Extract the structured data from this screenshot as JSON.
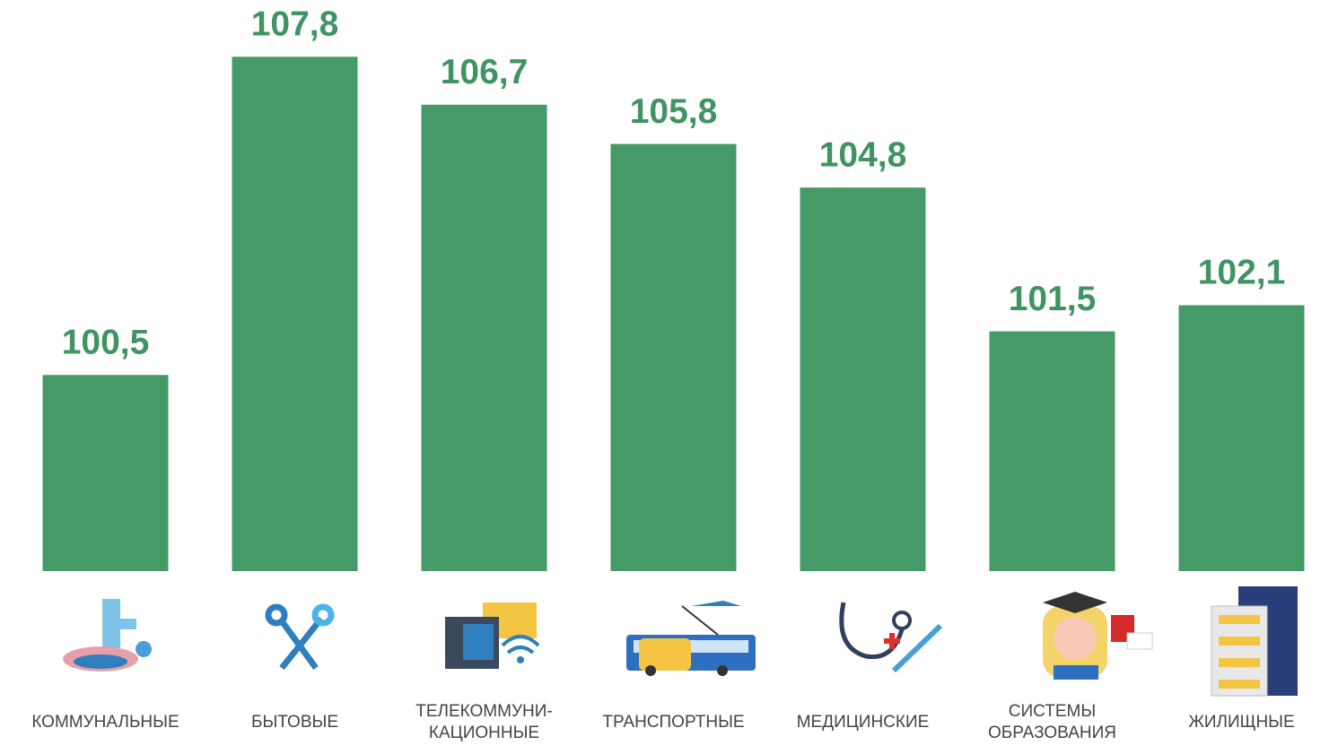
{
  "chart_data": {
    "type": "bar",
    "categories": [
      "КОММУНАЛЬНЫЕ",
      "БЫТОВЫЕ",
      "ТЕЛЕКОММУНИ-\nКАЦИОННЫЕ",
      "ТРАНСПОРТНЫЕ",
      "МЕДИЦИНСКИЕ",
      "СИСТЕМЫ\nОБРАЗОВАНИЯ",
      "ЖИЛИЩНЫЕ"
    ],
    "values": [
      100.5,
      107.8,
      106.7,
      105.8,
      104.8,
      101.5,
      102.1
    ],
    "value_labels": [
      "100,5",
      "107,8",
      "106,7",
      "105,8",
      "104,8",
      "101,5",
      "102,1"
    ],
    "color": "#459a67",
    "ylim": [
      96,
      109
    ]
  }
}
